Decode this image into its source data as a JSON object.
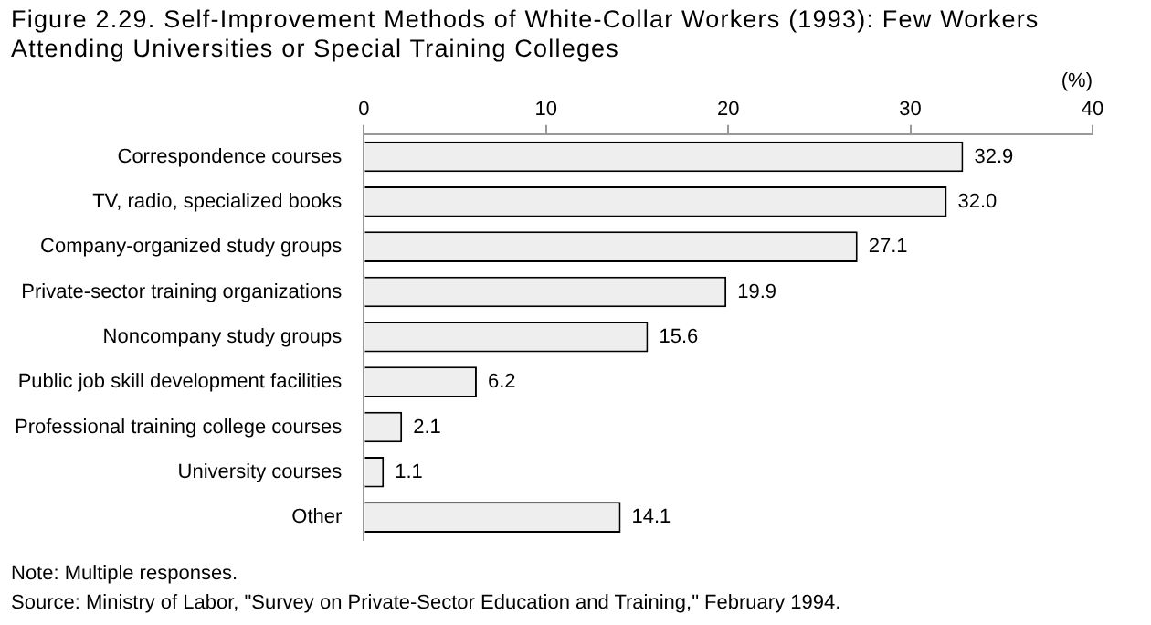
{
  "chart_data": {
    "type": "bar",
    "orientation": "horizontal",
    "title": "Figure 2.29. Self-Improvement Methods of White-Collar Workers (1993): Few Workers Attending Universities or Special Training Colleges",
    "xlabel": "(%)",
    "categories": [
      "Correspondence courses",
      "TV, radio, specialized books",
      "Company-organized study groups",
      "Private-sector training organizations",
      "Noncompany study groups",
      "Public job skill development facilities",
      "Professional training college courses",
      "University courses",
      "Other"
    ],
    "values": [
      32.9,
      32.0,
      27.1,
      19.9,
      15.6,
      6.2,
      2.1,
      1.1,
      14.1
    ],
    "color": "#eeeeee",
    "xlim": [
      0,
      40
    ],
    "xticks": [
      0,
      10,
      20,
      30,
      40
    ],
    "value_labels": [
      "32.9",
      "32.0",
      "27.1",
      "19.9",
      "15.6",
      "6.2",
      "2.1",
      "1.1",
      "14.1"
    ],
    "grid": false,
    "legend": false,
    "annotations": [
      "Note: Multiple responses.",
      "Source: Ministry of Labor, \"Survey on Private-Sector Education and Training,\" February 1994."
    ]
  }
}
